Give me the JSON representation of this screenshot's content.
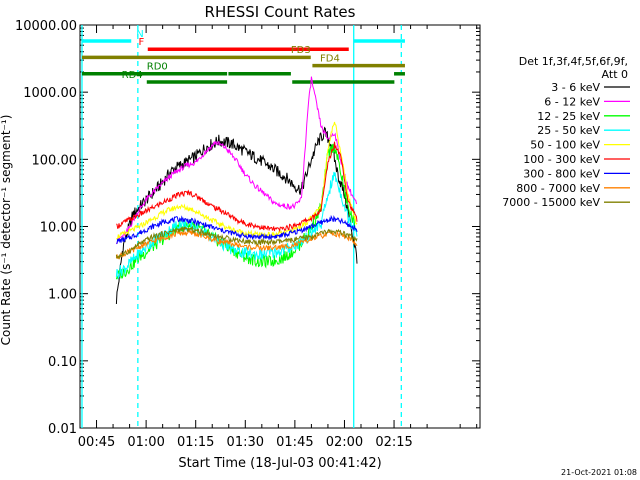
{
  "chart_data": {
    "type": "line",
    "title": "RHESSI Count Rates",
    "xlabel": "Start Time (18-Jul-03 00:41:42)",
    "ylabel": "Count Rate (s⁻¹ detector⁻¹ segment⁻¹)",
    "yscale": "log",
    "xlim_min": [
      40,
      161
    ],
    "ylim": [
      0.01,
      10000
    ],
    "x_ticks": [
      {
        "min": 45,
        "label": "00:45"
      },
      {
        "min": 60,
        "label": "01:00"
      },
      {
        "min": 75,
        "label": "01:15"
      },
      {
        "min": 90,
        "label": "01:30"
      },
      {
        "min": 105,
        "label": "01:45"
      },
      {
        "min": 120,
        "label": "02:00"
      },
      {
        "min": 135,
        "label": "02:15"
      }
    ],
    "y_ticks": [
      {
        "value": 10000,
        "label": "10000.00"
      },
      {
        "value": 1000,
        "label": "1000.00"
      },
      {
        "value": 100,
        "label": "100.00"
      },
      {
        "value": 10,
        "label": "10.00"
      },
      {
        "value": 1,
        "label": "1.00"
      },
      {
        "value": 0.1,
        "label": "0.10"
      },
      {
        "value": 0.01,
        "label": "0.01"
      }
    ],
    "legend_header": [
      "Det 1f,3f,4f,5f,6f,9f,",
      "Att 0"
    ],
    "series": [
      {
        "name": "3 - 6 keV",
        "color": "#000000",
        "points": [
          [
            51,
            0.8
          ],
          [
            53,
            5
          ],
          [
            56,
            15
          ],
          [
            60,
            25
          ],
          [
            64,
            40
          ],
          [
            68,
            70
          ],
          [
            72,
            90
          ],
          [
            75,
            110
          ],
          [
            78,
            150
          ],
          [
            82,
            190
          ],
          [
            86,
            170
          ],
          [
            90,
            130
          ],
          [
            94,
            100
          ],
          [
            98,
            75
          ],
          [
            102,
            55
          ],
          [
            105,
            40
          ],
          [
            107,
            35
          ],
          [
            110,
            100
          ],
          [
            112,
            180
          ],
          [
            114,
            250
          ],
          [
            116,
            170
          ],
          [
            118,
            60
          ],
          [
            120,
            30
          ],
          [
            122,
            10
          ],
          [
            124,
            3
          ]
        ]
      },
      {
        "name": "6 - 12 keV",
        "color": "#ff00ff",
        "points": [
          [
            51,
            6
          ],
          [
            54,
            8
          ],
          [
            57,
            15
          ],
          [
            60,
            25
          ],
          [
            64,
            40
          ],
          [
            68,
            60
          ],
          [
            72,
            80
          ],
          [
            75,
            90
          ],
          [
            78,
            130
          ],
          [
            81,
            180
          ],
          [
            84,
            150
          ],
          [
            87,
            100
          ],
          [
            90,
            60
          ],
          [
            93,
            40
          ],
          [
            96,
            30
          ],
          [
            99,
            22
          ],
          [
            102,
            20
          ],
          [
            105,
            20
          ],
          [
            107,
            26
          ],
          [
            109,
            600
          ],
          [
            110,
            1600
          ],
          [
            111,
            900
          ],
          [
            113,
            300
          ],
          [
            115,
            200
          ],
          [
            117,
            250
          ],
          [
            119,
            90
          ],
          [
            121,
            40
          ],
          [
            124,
            20
          ]
        ]
      },
      {
        "name": "12 - 25 keV",
        "color": "#00ff00",
        "points": [
          [
            51,
            1.8
          ],
          [
            54,
            2.2
          ],
          [
            58,
            3.5
          ],
          [
            62,
            5
          ],
          [
            66,
            7
          ],
          [
            70,
            10
          ],
          [
            74,
            11
          ],
          [
            78,
            8
          ],
          [
            82,
            6
          ],
          [
            86,
            4.5
          ],
          [
            90,
            3.5
          ],
          [
            94,
            3
          ],
          [
            98,
            3
          ],
          [
            102,
            3.5
          ],
          [
            106,
            5
          ],
          [
            109,
            8
          ],
          [
            111,
            12
          ],
          [
            113,
            20
          ],
          [
            115,
            120
          ],
          [
            117,
            160
          ],
          [
            119,
            60
          ],
          [
            121,
            20
          ],
          [
            124,
            8
          ]
        ]
      },
      {
        "name": "25 - 50 keV",
        "color": "#00ffff",
        "points": [
          [
            51,
            2
          ],
          [
            54,
            2.5
          ],
          [
            58,
            4
          ],
          [
            62,
            6
          ],
          [
            66,
            8
          ],
          [
            70,
            11
          ],
          [
            74,
            10
          ],
          [
            78,
            8
          ],
          [
            82,
            6
          ],
          [
            86,
            4.5
          ],
          [
            90,
            4
          ],
          [
            94,
            3.8
          ],
          [
            98,
            4
          ],
          [
            102,
            4.5
          ],
          [
            106,
            5.5
          ],
          [
            109,
            7
          ],
          [
            111,
            9
          ],
          [
            113,
            11
          ],
          [
            115,
            30
          ],
          [
            117,
            60
          ],
          [
            119,
            30
          ],
          [
            121,
            14
          ],
          [
            124,
            8
          ]
        ]
      },
      {
        "name": "50 - 100 keV",
        "color": "#ffff00",
        "points": [
          [
            51,
            7
          ],
          [
            54,
            8
          ],
          [
            58,
            10
          ],
          [
            62,
            13
          ],
          [
            66,
            17
          ],
          [
            70,
            20
          ],
          [
            74,
            18
          ],
          [
            78,
            14
          ],
          [
            82,
            11
          ],
          [
            86,
            9
          ],
          [
            90,
            8
          ],
          [
            94,
            7.5
          ],
          [
            98,
            7.5
          ],
          [
            102,
            8
          ],
          [
            106,
            9.5
          ],
          [
            109,
            12
          ],
          [
            111,
            15
          ],
          [
            113,
            20
          ],
          [
            115,
            150
          ],
          [
            117,
            380
          ],
          [
            119,
            120
          ],
          [
            121,
            30
          ],
          [
            124,
            10
          ]
        ]
      },
      {
        "name": "100 - 300 keV",
        "color": "#ff0000",
        "points": [
          [
            51,
            10
          ],
          [
            54,
            12
          ],
          [
            58,
            15
          ],
          [
            62,
            19
          ],
          [
            66,
            24
          ],
          [
            70,
            30
          ],
          [
            73,
            32
          ],
          [
            76,
            27
          ],
          [
            80,
            20
          ],
          [
            84,
            16
          ],
          [
            88,
            12
          ],
          [
            92,
            10.5
          ],
          [
            96,
            9.5
          ],
          [
            100,
            9
          ],
          [
            104,
            10
          ],
          [
            108,
            12
          ],
          [
            111,
            14
          ],
          [
            113,
            18
          ],
          [
            115,
            90
          ],
          [
            117,
            170
          ],
          [
            119,
            110
          ],
          [
            121,
            25
          ],
          [
            124,
            12
          ]
        ]
      },
      {
        "name": "300 - 800 keV",
        "color": "#0000ff",
        "points": [
          [
            51,
            6
          ],
          [
            54,
            6.5
          ],
          [
            58,
            8
          ],
          [
            62,
            10
          ],
          [
            66,
            12
          ],
          [
            70,
            13
          ],
          [
            74,
            12
          ],
          [
            78,
            10.5
          ],
          [
            82,
            9
          ],
          [
            86,
            8
          ],
          [
            90,
            7.2
          ],
          [
            94,
            7
          ],
          [
            98,
            7
          ],
          [
            102,
            7.5
          ],
          [
            106,
            8.5
          ],
          [
            110,
            10
          ],
          [
            113,
            11.5
          ],
          [
            116,
            13
          ],
          [
            119,
            12
          ],
          [
            122,
            10
          ],
          [
            124,
            9
          ]
        ]
      },
      {
        "name": "800 - 7000 keV",
        "color": "#ff8000",
        "points": [
          [
            51,
            3.5
          ],
          [
            54,
            4
          ],
          [
            58,
            5
          ],
          [
            62,
            6
          ],
          [
            66,
            7
          ],
          [
            70,
            8
          ],
          [
            74,
            8
          ],
          [
            78,
            7
          ],
          [
            82,
            6
          ],
          [
            86,
            5.5
          ],
          [
            90,
            5
          ],
          [
            94,
            4.8
          ],
          [
            98,
            4.8
          ],
          [
            102,
            5
          ],
          [
            106,
            5.5
          ],
          [
            110,
            6.5
          ],
          [
            113,
            7.2
          ],
          [
            116,
            8
          ],
          [
            119,
            7.5
          ],
          [
            122,
            6.5
          ],
          [
            124,
            5
          ]
        ]
      },
      {
        "name": "7000 - 15000 keV",
        "color": "#808000",
        "points": [
          [
            51,
            3.5
          ],
          [
            54,
            4
          ],
          [
            58,
            5.5
          ],
          [
            62,
            7
          ],
          [
            66,
            8
          ],
          [
            70,
            9
          ],
          [
            74,
            9
          ],
          [
            78,
            8
          ],
          [
            82,
            7
          ],
          [
            86,
            6.5
          ],
          [
            90,
            6
          ],
          [
            94,
            5.8
          ],
          [
            98,
            5.8
          ],
          [
            102,
            6
          ],
          [
            106,
            6.5
          ],
          [
            110,
            7
          ],
          [
            113,
            8
          ],
          [
            116,
            8.5
          ],
          [
            119,
            8
          ],
          [
            122,
            7
          ],
          [
            124,
            6
          ]
        ]
      }
    ],
    "vlines": [
      {
        "min": 40.6,
        "color": "#00ffff",
        "style": "solid"
      },
      {
        "min": 57.5,
        "color": "#00ffff",
        "style": "dashed"
      },
      {
        "min": 122.8,
        "color": "#00ffff",
        "style": "solid"
      },
      {
        "min": 137.2,
        "color": "#00ffff",
        "style": "dashed"
      }
    ],
    "bars": [
      {
        "start": 40.6,
        "end": 55.5,
        "color": "#00ffff",
        "level": 1
      },
      {
        "start": 122.8,
        "end": 138.3,
        "color": "#00ffff",
        "level": 1
      },
      {
        "start": 60.5,
        "end": 121.3,
        "color": "#ff0000",
        "level": 2
      },
      {
        "start": 40.6,
        "end": 109.8,
        "color": "#808000",
        "level": 3
      },
      {
        "start": 110.3,
        "end": 138.3,
        "color": "#808000",
        "level": 4
      },
      {
        "start": 40.6,
        "end": 84.5,
        "color": "#008000",
        "level": 5
      },
      {
        "start": 84.9,
        "end": 103.8,
        "color": "#008000",
        "level": 5
      },
      {
        "start": 135,
        "end": 138.3,
        "color": "#008000",
        "level": 5
      },
      {
        "start": 60.2,
        "end": 84.5,
        "color": "#008000",
        "level": 6
      },
      {
        "start": 104.2,
        "end": 135.1,
        "color": "#008000",
        "level": 6
      }
    ],
    "bar_labels": [
      {
        "text": "N",
        "min": 57,
        "color": "#00ffff",
        "level": 0
      },
      {
        "text": "F",
        "min": 57.7,
        "color": "#ff0000",
        "level": 1
      },
      {
        "text": "FD3",
        "min": 103.8,
        "color": "#808000",
        "level": 2
      },
      {
        "text": "FD4",
        "min": 112.6,
        "color": "#808000",
        "level": 3
      },
      {
        "text": "RD0",
        "min": 60.2,
        "color": "#008000",
        "level": 4
      },
      {
        "text": "RD4",
        "min": 52.6,
        "color": "#008000",
        "level": 5
      }
    ]
  },
  "footer_timestamp": "21-Oct-2021 01:08"
}
